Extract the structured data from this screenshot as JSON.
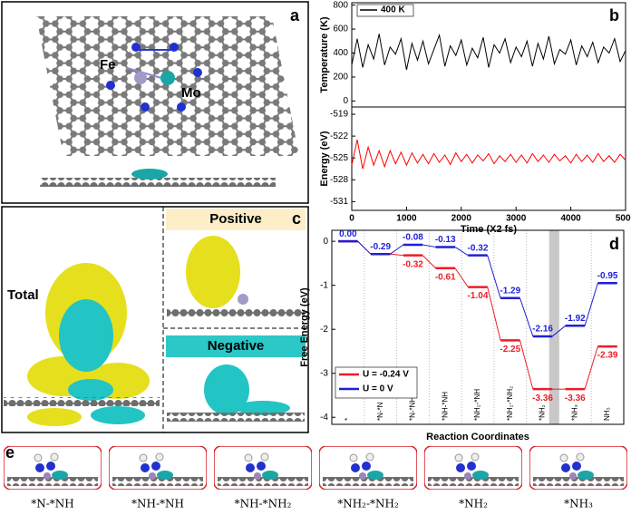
{
  "labels": {
    "a": "a",
    "fe": "Fe",
    "mo": "Mo",
    "b": "b",
    "c": "c",
    "total": "Total",
    "positive": "Positive",
    "negative": "Negative",
    "d": "d",
    "e": "e"
  },
  "panel_e": {
    "captions": [
      "*N-*NH",
      "*NH-*NH",
      "*NH-*NH₂",
      "*NH₂-*NH₂",
      "*NH₂",
      "*NH₃"
    ]
  },
  "chart_data": [
    {
      "type": "line",
      "y_label": "Temperature (K)",
      "xlim": [
        0,
        5000
      ],
      "ylim": [
        -50,
        820
      ],
      "yticks": [
        0,
        200,
        400,
        600,
        800
      ],
      "legend": "top-left",
      "x": [
        0,
        100,
        200,
        300,
        400,
        500,
        600,
        700,
        800,
        900,
        1000,
        1100,
        1200,
        1300,
        1400,
        1500,
        1600,
        1700,
        1800,
        1900,
        2000,
        2100,
        2200,
        2300,
        2400,
        2500,
        2600,
        2700,
        2800,
        2900,
        3000,
        3100,
        3200,
        3300,
        3400,
        3500,
        3600,
        3700,
        3800,
        3900,
        4000,
        4100,
        4200,
        4300,
        4400,
        4500,
        4600,
        4700,
        4800,
        4900,
        5000
      ],
      "series": [
        {
          "name": "400 K",
          "color": "#000000",
          "values": [
            300,
            520,
            280,
            470,
            350,
            560,
            300,
            450,
            390,
            520,
            260,
            480,
            340,
            500,
            310,
            430,
            550,
            290,
            460,
            380,
            510,
            300,
            440,
            360,
            530,
            280,
            470,
            400,
            520,
            320,
            450,
            370,
            500,
            290,
            480,
            350,
            540,
            310,
            430,
            390,
            510,
            300,
            460,
            370,
            490,
            320,
            450,
            400,
            520,
            330,
            420
          ]
        }
      ]
    },
    {
      "type": "line",
      "y_label": "Energy (eV)",
      "x_label": "Time (X2 fs)",
      "xlim": [
        0,
        5000
      ],
      "xticks": [
        0,
        1000,
        2000,
        3000,
        4000,
        5000
      ],
      "ylim": [
        -532.2,
        -518
      ],
      "yticks": [
        -531,
        -528,
        -525,
        -522,
        -519
      ],
      "color": "#ff0000",
      "x": [
        0,
        100,
        200,
        300,
        400,
        500,
        600,
        700,
        800,
        900,
        1000,
        1100,
        1200,
        1300,
        1400,
        1500,
        1600,
        1700,
        1800,
        1900,
        2000,
        2100,
        2200,
        2300,
        2400,
        2500,
        2600,
        2700,
        2800,
        2900,
        3000,
        3100,
        3200,
        3300,
        3400,
        3500,
        3600,
        3700,
        3800,
        3900,
        4000,
        4100,
        4200,
        4300,
        4400,
        4500,
        4600,
        4700,
        4800,
        4900,
        5000
      ],
      "values": [
        -526,
        -522.5,
        -526.5,
        -523.5,
        -526,
        -524,
        -526.2,
        -524,
        -525.8,
        -524.2,
        -526,
        -524.3,
        -525.7,
        -524.5,
        -525.8,
        -524.4,
        -525.6,
        -524.6,
        -525.9,
        -524.3,
        -525.5,
        -524.5,
        -525.7,
        -524.6,
        -525.4,
        -524.4,
        -525.8,
        -524.7,
        -525.5,
        -524.5,
        -525.6,
        -524.6,
        -525.7,
        -524.4,
        -525.5,
        -524.6,
        -525.6,
        -524.5,
        -525.4,
        -524.7,
        -525.7,
        -524.5,
        -525.5,
        -524.6,
        -525.6,
        -524.4,
        -525.5,
        -524.7,
        -525.6,
        -524.5,
        -525.3
      ]
    },
    {
      "type": "step",
      "y_label": "Free Energy (eV)",
      "x_label": "Reaction Coordinates",
      "ylim": [
        -4.16,
        0.25
      ],
      "yticks": [
        -4,
        -3,
        -2,
        -1,
        0
      ],
      "legend": "bottom-left",
      "categories": [
        "*",
        "*N-*N",
        "*N-*NH",
        "*NH-*NH",
        "*NH₂-*NH",
        "*NH₂-*NH₂",
        "*NH₂",
        "*NH₃",
        "NH₃"
      ],
      "series": [
        {
          "name": "U = -0.24 V",
          "color": "#ee1c25",
          "values": [
            0,
            -0.29,
            -0.32,
            -0.61,
            -1.04,
            -2.25,
            -3.36,
            -3.36,
            -2.39
          ],
          "value_labels": [
            null,
            null,
            "-0.32",
            "-0.61",
            "-1.04",
            "-2.25",
            "-3.36",
            "-3.36",
            "-2.39"
          ]
        },
        {
          "name": "U = 0 V",
          "color": "#1f1fd6",
          "values": [
            0,
            -0.29,
            -0.08,
            -0.13,
            -0.32,
            -1.29,
            -2.16,
            -1.92,
            -0.95
          ],
          "value_labels": [
            "0.00",
            "-0.29",
            "-0.08",
            "-0.13",
            "-0.32",
            "-1.29",
            "-2.16",
            "-1.92",
            "-0.95"
          ]
        }
      ]
    }
  ]
}
